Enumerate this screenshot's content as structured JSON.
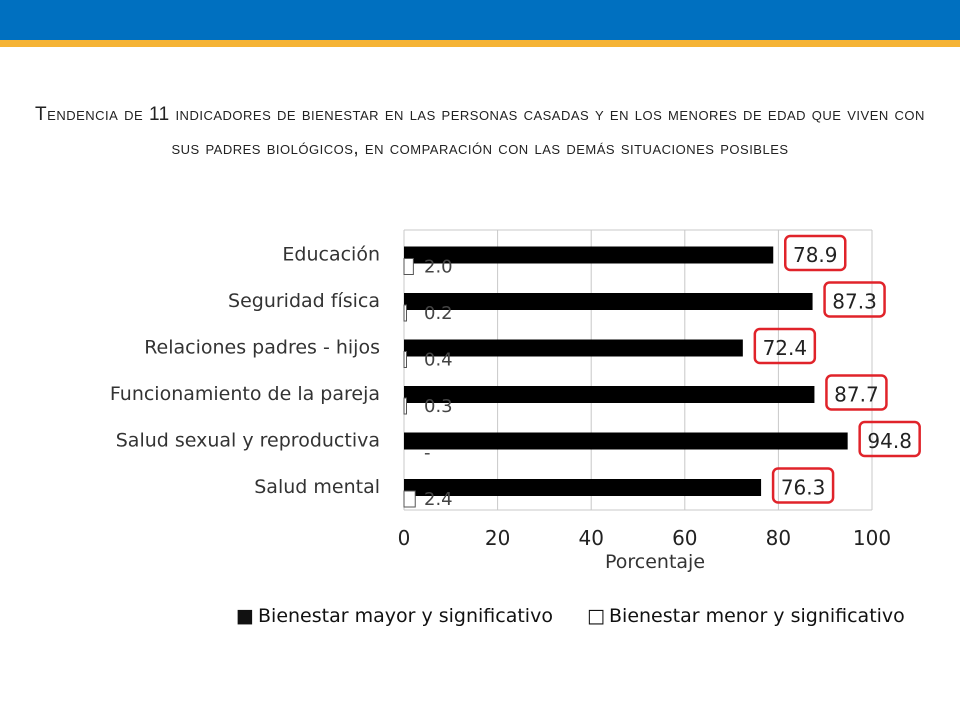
{
  "slide": {
    "title": "Tendencia de 11 indicadores de bienestar en las personas casadas y en los menores de edad que viven con sus padres biológicos, en comparación con las demás situaciones posibles"
  },
  "colors": {
    "header_blue": "#0070c0",
    "header_stripe": "#f5b335",
    "bar_fill": "#000000",
    "highlight_box": "#e0232a"
  },
  "chart_data": {
    "type": "bar",
    "orientation": "horizontal",
    "categories": [
      "Educación",
      "Seguridad física",
      "Relaciones padres - hijos",
      "Funcionamiento de la pareja",
      "Salud sexual y reproductiva",
      "Salud mental"
    ],
    "series": [
      {
        "name": "Bienestar mayor y significativo",
        "values": [
          78.9,
          87.3,
          72.4,
          87.7,
          94.8,
          76.3
        ]
      },
      {
        "name": "Bienestar menor y significativo",
        "values": [
          2.0,
          0.2,
          0.4,
          0.3,
          null,
          2.4
        ]
      }
    ],
    "value_labels_major": [
      "78.9",
      "87.3",
      "72.4",
      "87.7",
      "94.8",
      "76.3"
    ],
    "value_labels_minor": [
      "2.0",
      "0.2",
      "0.4",
      "0.3",
      "-",
      "2.4"
    ],
    "xlabel": "Porcentaje",
    "xlim": [
      0,
      100
    ],
    "xticks": [
      "0",
      "20",
      "40",
      "60",
      "80",
      "100"
    ],
    "grid": true,
    "legend_position": "bottom",
    "legend_markers": [
      "■",
      "□"
    ]
  }
}
